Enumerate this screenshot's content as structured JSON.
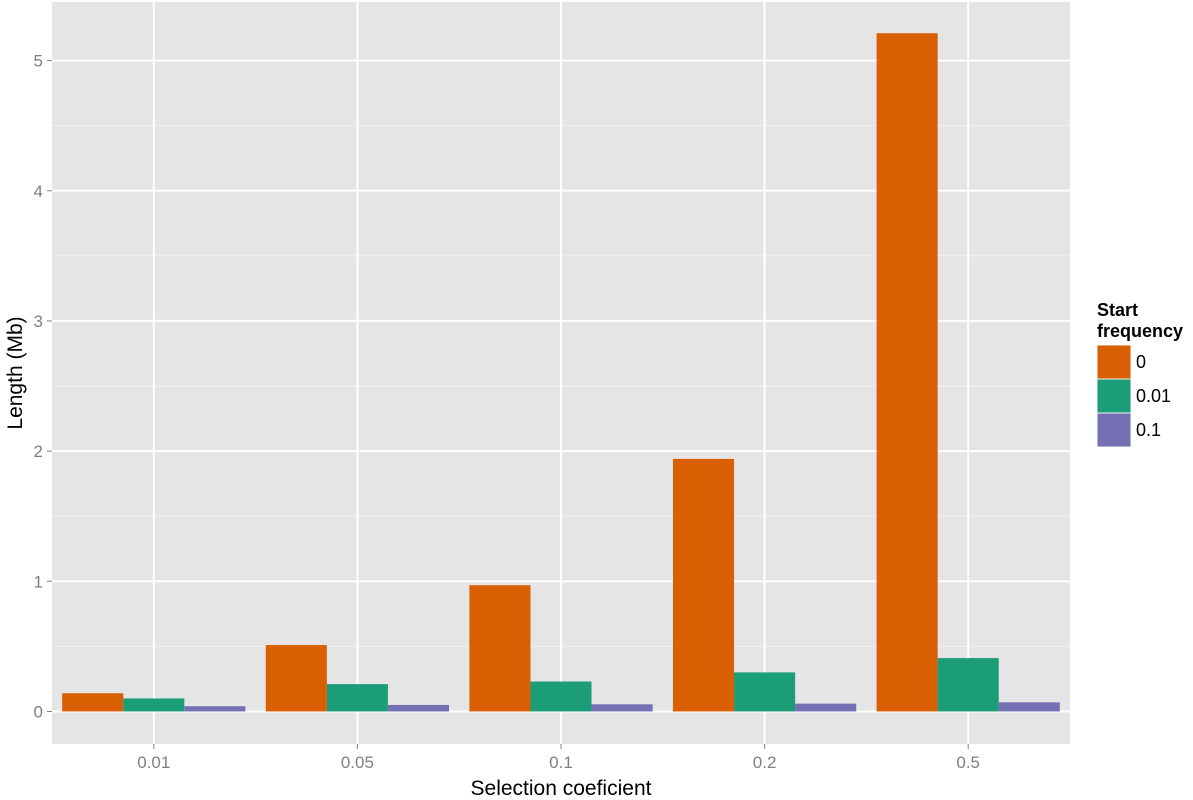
{
  "chart_data": {
    "type": "bar",
    "title": "",
    "xlabel": "Selection coeficient",
    "ylabel": "Length (Mb)",
    "categories": [
      "0.01",
      "0.05",
      "0.1",
      "0.2",
      "0.5"
    ],
    "ylim": [
      -0.25,
      5.45
    ],
    "yticks": [
      0,
      1,
      2,
      3,
      4,
      5
    ],
    "ytick_labels": [
      "0",
      "1",
      "2",
      "3",
      "4",
      "5"
    ],
    "grid": true,
    "legend": {
      "title_lines": [
        "Start",
        "frequency"
      ],
      "position": "right"
    },
    "series": [
      {
        "name": "0",
        "color": "#d95f02",
        "values": [
          0.14,
          0.51,
          0.97,
          1.94,
          5.21
        ]
      },
      {
        "name": "0.01",
        "color": "#1b9e77",
        "values": [
          0.1,
          0.21,
          0.23,
          0.3,
          0.41
        ]
      },
      {
        "name": "0.1",
        "color": "#7570b3",
        "values": [
          0.04,
          0.05,
          0.055,
          0.06,
          0.07
        ]
      }
    ]
  }
}
